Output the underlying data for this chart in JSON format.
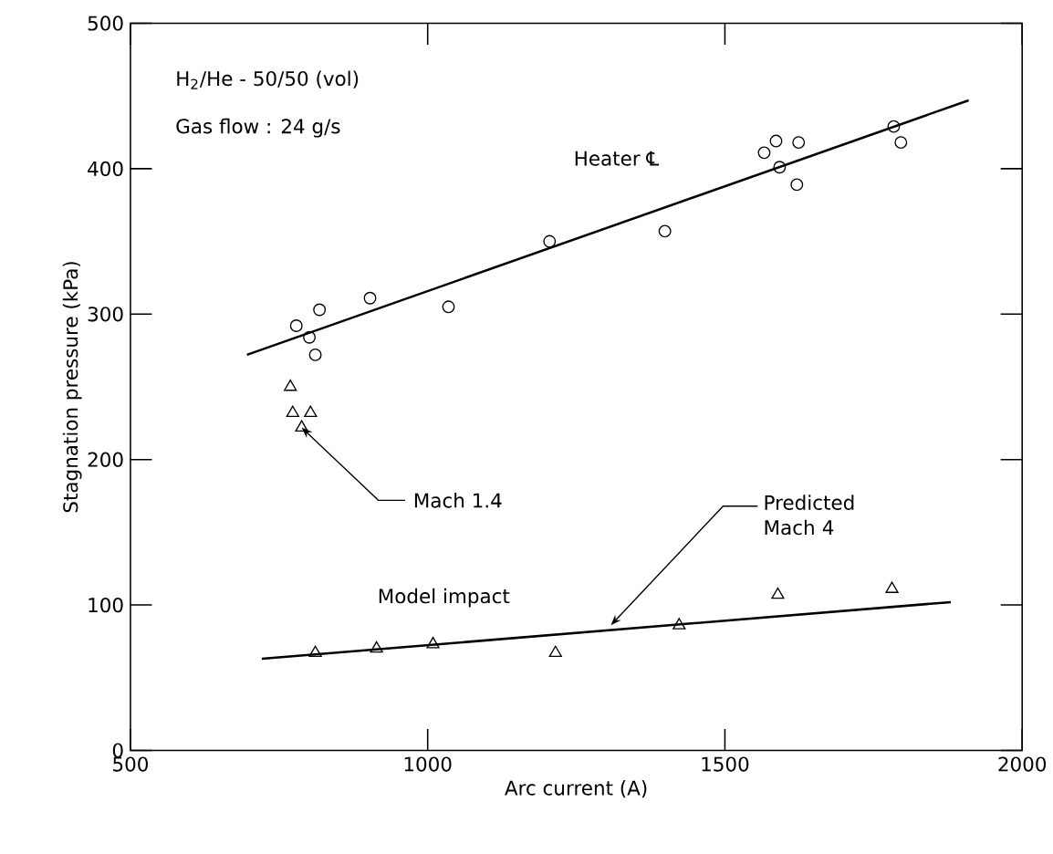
{
  "chart_data": {
    "type": "scatter",
    "xlabel": "Arc current (A)",
    "ylabel": "Stagnation pressure (kPa)",
    "xlim": [
      500,
      2000
    ],
    "xticks": [
      500,
      1000,
      1500,
      2000
    ],
    "ylim": [
      0,
      500
    ],
    "yticks": [
      0,
      100,
      200,
      300,
      400,
      500
    ],
    "grid": false,
    "series": [
      {
        "marker": "circle",
        "color": "#000000",
        "x": [
          779,
          801,
          811,
          818,
          903,
          1035,
          1205,
          1399,
          1566,
          1586,
          1624,
          1592,
          1621,
          1784,
          1796
        ],
        "values": [
          292,
          284,
          272,
          303,
          311,
          305,
          350,
          357,
          411,
          419,
          418,
          401,
          389,
          429,
          418
        ]
      },
      {
        "type": "line",
        "marker": "none",
        "color": "#000000",
        "x": [
          696,
          1910
        ],
        "values": [
          272,
          447
        ]
      },
      {
        "marker": "triangle",
        "color": "#000000",
        "x": [
          769,
          773,
          803,
          788
        ],
        "values": [
          250,
          232,
          232,
          222
        ]
      },
      {
        "marker": "triangle",
        "color": "#000000",
        "x": [
          811,
          914,
          1009,
          1215,
          1423,
          1589,
          1781
        ],
        "values": [
          67,
          70,
          73,
          67,
          86,
          107,
          111
        ]
      },
      {
        "type": "line",
        "marker": "none",
        "color": "#000000",
        "x": [
          721,
          1880
        ],
        "values": [
          63,
          102
        ]
      }
    ],
    "annotations": [
      "H$_{2}$/He - 50/50 (vol)",
      "Gas flow : 24 g/s",
      "Heater ℄",
      {
        "text": "Mach 1.4",
        "x": 788,
        "y": 222
      },
      {
        "text": "Predicted Mach 4",
        "x": 1308,
        "y": 86
      },
      "Model impact"
    ]
  }
}
